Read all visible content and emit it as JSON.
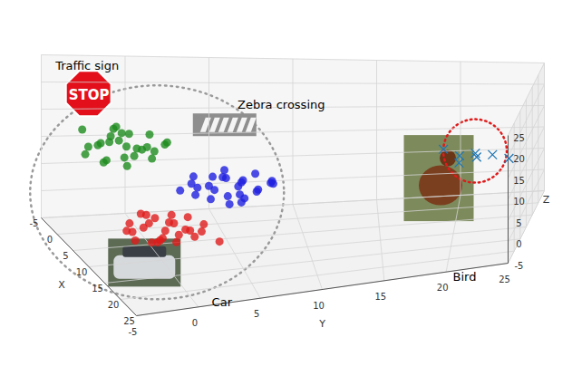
{
  "chart_data": {
    "type": "scatter3d",
    "xlabel": "X",
    "ylabel": "Y",
    "zlabel": "Z",
    "xlim": [
      -5,
      25
    ],
    "ylim": [
      -5,
      25
    ],
    "zlim": [
      -5,
      25
    ],
    "xticks": [
      -5,
      0,
      5,
      10,
      15,
      20,
      25
    ],
    "yticks": [
      -5,
      0,
      5,
      10,
      15,
      20,
      25
    ],
    "zticks": [
      -5,
      0,
      5,
      10,
      15,
      20,
      25
    ],
    "grid": true,
    "series": [
      {
        "name": "Traffic sign",
        "color": "#1e8c1e",
        "marker": "circle",
        "points": [
          [
            3,
            -3,
            13
          ],
          [
            5,
            -2,
            15
          ],
          [
            6,
            -1,
            14
          ],
          [
            4,
            -4,
            12
          ],
          [
            7,
            -2,
            13
          ],
          [
            5,
            0,
            16
          ],
          [
            3,
            -1,
            15
          ],
          [
            6,
            -3,
            12
          ],
          [
            4,
            -2,
            17
          ],
          [
            8,
            -1,
            15
          ],
          [
            2,
            -2,
            14
          ],
          [
            5,
            -4,
            14
          ],
          [
            6,
            1,
            15
          ],
          [
            4,
            0,
            13
          ],
          [
            7,
            -3,
            16
          ],
          [
            3,
            -4,
            16
          ],
          [
            5,
            -1,
            12
          ],
          [
            6,
            -2,
            17
          ],
          [
            4,
            -3,
            14
          ],
          [
            7,
            0,
            14
          ],
          [
            2,
            -1,
            12
          ],
          [
            5,
            -3,
            11
          ],
          [
            6,
            0,
            12
          ],
          [
            3,
            -2,
            16
          ],
          [
            8,
            -2,
            12
          ],
          [
            5,
            1,
            14
          ]
        ]
      },
      {
        "name": "Zebra crossing",
        "color": "#1f1fe0",
        "marker": "circle",
        "points": [
          [
            4,
            4,
            5
          ],
          [
            5,
            6,
            6
          ],
          [
            6,
            5,
            4
          ],
          [
            3,
            5,
            6
          ],
          [
            5,
            3,
            4
          ],
          [
            6,
            7,
            5
          ],
          [
            4,
            6,
            3
          ],
          [
            7,
            4,
            6
          ],
          [
            5,
            5,
            7
          ],
          [
            3,
            3,
            5
          ],
          [
            6,
            6,
            7
          ],
          [
            4,
            8,
            5
          ],
          [
            5,
            4,
            3
          ],
          [
            7,
            6,
            4
          ],
          [
            4,
            5,
            8
          ],
          [
            6,
            3,
            6
          ],
          [
            5,
            7,
            4
          ],
          [
            3,
            6,
            4
          ],
          [
            6,
            4,
            8
          ],
          [
            5,
            8,
            6
          ],
          [
            4,
            3,
            7
          ],
          [
            7,
            5,
            3
          ],
          [
            5,
            6,
            2
          ],
          [
            6,
            8,
            6
          ],
          [
            4,
            7,
            7
          ],
          [
            5,
            2,
            5
          ]
        ]
      },
      {
        "name": "Car",
        "color": "#e01b1b",
        "marker": "circle",
        "points": [
          [
            14,
            -2,
            4
          ],
          [
            15,
            0,
            5
          ],
          [
            16,
            -1,
            3
          ],
          [
            13,
            -1,
            5
          ],
          [
            15,
            -3,
            4
          ],
          [
            17,
            0,
            4
          ],
          [
            14,
            1,
            3
          ],
          [
            16,
            -2,
            6
          ],
          [
            15,
            -1,
            2
          ],
          [
            13,
            -3,
            3
          ],
          [
            17,
            -1,
            5
          ],
          [
            14,
            0,
            6
          ],
          [
            16,
            1,
            4
          ],
          [
            15,
            -2,
            7
          ],
          [
            13,
            0,
            4
          ],
          [
            16,
            -3,
            3
          ],
          [
            14,
            -1,
            1
          ],
          [
            17,
            -2,
            3
          ],
          [
            15,
            1,
            6
          ],
          [
            16,
            0,
            2
          ],
          [
            14,
            -3,
            5
          ],
          [
            18,
            1,
            4
          ],
          [
            15,
            2,
            3
          ],
          [
            13,
            -2,
            6
          ],
          [
            16,
            2,
            5
          ],
          [
            17,
            3,
            2
          ]
        ]
      },
      {
        "name": "Bird",
        "color": "#1f77b4",
        "marker": "x",
        "points": [
          [
            -3,
            20,
            5
          ],
          [
            -2,
            21,
            6
          ],
          [
            -4,
            21,
            4
          ],
          [
            -3,
            22,
            5
          ],
          [
            -2,
            20,
            4
          ],
          [
            -4,
            19,
            6
          ],
          [
            -3,
            23,
            4
          ]
        ]
      }
    ],
    "annotations": [
      {
        "text": "STOP",
        "series": "Traffic sign"
      }
    ]
  }
}
